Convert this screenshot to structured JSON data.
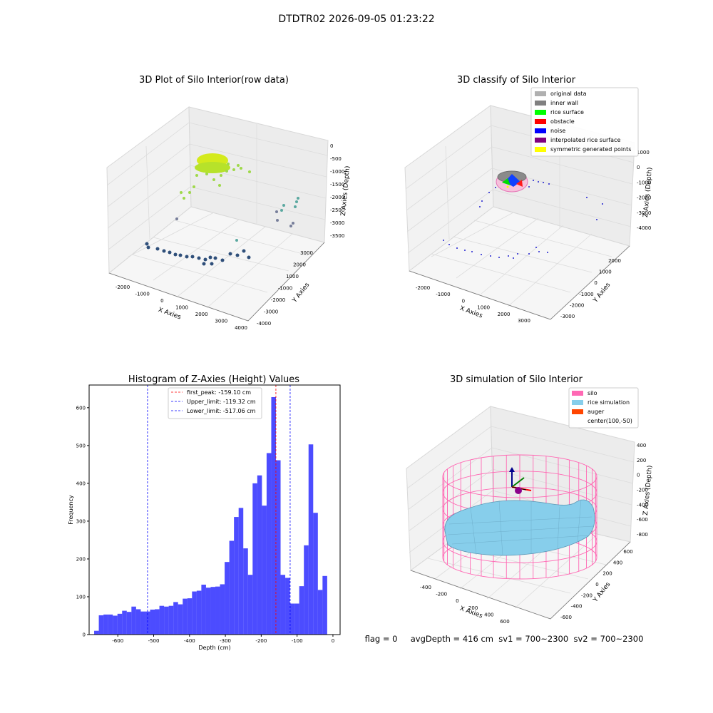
{
  "page_title": "DTDTR02 2026-09-05 01:23:22",
  "panel1": {
    "title": "3D Plot of Silo Interior(row data)",
    "xlabel": "X Axies",
    "ylabel": "Y Axies",
    "zlabel": "Z Axies (Depth)",
    "x_ticks": [
      "-2000",
      "-1000",
      "0",
      "1000",
      "2000",
      "3000",
      "4000"
    ],
    "y_ticks": [
      "3000",
      "2000",
      "1000",
      "-1000",
      "-2000",
      "-3000",
      "-4000"
    ],
    "z_ticks": [
      "0",
      "-500",
      "-1000",
      "-1500",
      "-2000",
      "-2500",
      "-3000",
      "-3500"
    ]
  },
  "panel2": {
    "title": "3D classify of Silo Interior",
    "xlabel": "X Axies",
    "ylabel": "Y Axies",
    "zlabel": "Z Axies (Depth)",
    "x_ticks": [
      "-2000",
      "-1000",
      "0",
      "1000",
      "2000",
      "3000"
    ],
    "y_ticks": [
      "2000",
      "1000",
      "0",
      "-1000",
      "-2000",
      "-3000"
    ],
    "z_ticks": [
      "1000",
      "0",
      "-1000",
      "-2000",
      "-3000",
      "-4000"
    ],
    "legend": [
      {
        "label": "original data",
        "color": "#b0b0b0"
      },
      {
        "label": "inner wall",
        "color": "#808080"
      },
      {
        "label": "rice surface",
        "color": "#00ff00"
      },
      {
        "label": "obstacle",
        "color": "#ff0000"
      },
      {
        "label": "noise",
        "color": "#0000ff"
      },
      {
        "label": "interpolated rice surface",
        "color": "#800080"
      },
      {
        "label": "symmetric generated points",
        "color": "#ffff00"
      }
    ]
  },
  "panel4": {
    "title": "3D simulation of Silo Interior",
    "xlabel": "X Axies",
    "ylabel": "Y Axies",
    "zlabel": "Z Axies (Depth)",
    "x_ticks": [
      "-400",
      "-200",
      "0",
      "200",
      "400",
      "600"
    ],
    "y_ticks": [
      "600",
      "400",
      "200",
      "0",
      "-200",
      "-400",
      "-600"
    ],
    "z_ticks": [
      "400",
      "200",
      "0",
      "-200",
      "-400",
      "-600",
      "-800"
    ],
    "legend": [
      {
        "label": "silo",
        "color": "#ff69b4"
      },
      {
        "label": "rice simulation",
        "color": "#87ceeb"
      },
      {
        "label": "auger",
        "color": "#ff4500"
      },
      {
        "label": "center(100,-50)",
        "color": ""
      }
    ]
  },
  "status_line": "flag = 0     avgDepth = 416 cm  sv1 = 700~2300  sv2 = 700~2300",
  "chart_data": {
    "type": "bar",
    "title": "Histogram of Z-Axies (Height) Values",
    "xlabel": "Depth (cm)",
    "ylabel": "Frequency",
    "xlim": [
      -680,
      20
    ],
    "ylim": [
      0,
      660
    ],
    "x_ticks": [
      -600,
      -500,
      -400,
      -300,
      -200,
      -100,
      0
    ],
    "y_ticks": [
      0,
      100,
      200,
      300,
      400,
      500,
      600
    ],
    "bar_color": "#0000ff",
    "bin_start": -666,
    "bin_width": 13,
    "values": [
      10,
      51,
      53,
      53,
      50,
      55,
      63,
      60,
      74,
      67,
      61,
      61,
      66,
      67,
      76,
      74,
      76,
      86,
      80,
      95,
      96,
      114,
      116,
      132,
      124,
      126,
      127,
      133,
      192,
      248,
      311,
      335,
      228,
      158,
      400,
      421,
      341,
      480,
      628,
      461,
      158,
      150,
      82,
      82,
      128,
      236,
      503,
      322,
      118,
      155
    ],
    "lines": [
      {
        "label": "first_peak: -159.10 cm",
        "x": -159.1,
        "color": "#ff0000"
      },
      {
        "label": "Upper_limit: -119.32 cm",
        "x": -119.32,
        "color": "#0000ff"
      },
      {
        "label": "Lower_limit: -517.06 cm",
        "x": -517.06,
        "color": "#0000ff"
      }
    ],
    "legend_position": "top-center"
  }
}
